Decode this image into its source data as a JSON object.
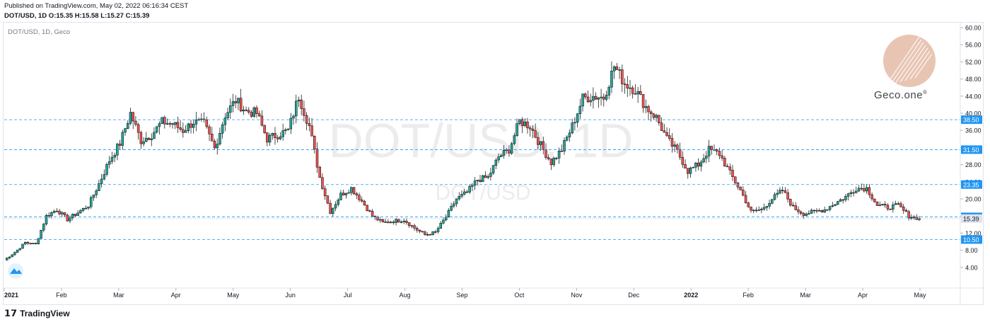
{
  "header": {
    "published": "Published on TradingView.com, May 02, 2022 06:16:34 CEST",
    "ohlc": "DOT/USD, 1D  O:15.35 H:15.58 L:15.27 C:15.39"
  },
  "chart_label": "DOT/USD, 1D, Geco",
  "watermark": {
    "main": "DOT/USD, 1D",
    "sub": "DOT/USD"
  },
  "brand": {
    "geco": "Geco.one",
    "geco_mark": "®",
    "footer": "TradingView"
  },
  "colors": {
    "up": "#26a69a",
    "down": "#ef5350",
    "level": "#2196f3",
    "price_label": "#2196f3",
    "last_price_bg": "#e0e3eb"
  },
  "chart_data": {
    "type": "candlestick",
    "y_axis": {
      "min": 0,
      "max": 61,
      "ticks": [
        "4.00",
        "8.00",
        "12.00",
        "16.00",
        "20.00",
        "24.00",
        "28.00",
        "32.00",
        "36.00",
        "40.00",
        "44.00",
        "48.00",
        "52.00",
        "56.00",
        "60.00"
      ]
    },
    "x_axis": {
      "ticks": [
        "2021",
        "Feb",
        "Mar",
        "Apr",
        "May",
        "Jun",
        "Jul",
        "Aug",
        "Sep",
        "Oct",
        "Nov",
        "Dec",
        "2022",
        "Feb",
        "Mar",
        "Apr",
        "May"
      ]
    },
    "closes": [
      5.7,
      7.5,
      9.8,
      9.4,
      16.0,
      17.5,
      15.2,
      16.8,
      18.5,
      23.5,
      29.0,
      33.0,
      40.0,
      33.6,
      35.0,
      38.0,
      37.5,
      36.0,
      38.0,
      37.5,
      31.8,
      39.6,
      43.0,
      40.5,
      40.0,
      34.0,
      35.0,
      36.0,
      44.0,
      37.0,
      25.0,
      17.0,
      21.0,
      22.5,
      19.5,
      16.0,
      14.4,
      14.8,
      15.1,
      13.2,
      11.6,
      12.2,
      15.8,
      20.0,
      21.5,
      24.5,
      25.0,
      29.8,
      31.5,
      38.2,
      37.0,
      32.5,
      28.5,
      31.5,
      37.0,
      43.5,
      44.0,
      43.7,
      51.0,
      47.0,
      45.5,
      41.5,
      39.0,
      34.0,
      31.0,
      26.5,
      28.0,
      31.5,
      30.5,
      26.0,
      22.0,
      17.0,
      17.5,
      20.0,
      22.0,
      18.0,
      16.5,
      17.0,
      17.5,
      19.0,
      20.5,
      22.5,
      22.5,
      18.5,
      18.0,
      18.5,
      16.0,
      15.39
    ],
    "levels": [
      10.5,
      15.8,
      23.35,
      31.5,
      38.5
    ],
    "last_price": 15.39
  }
}
